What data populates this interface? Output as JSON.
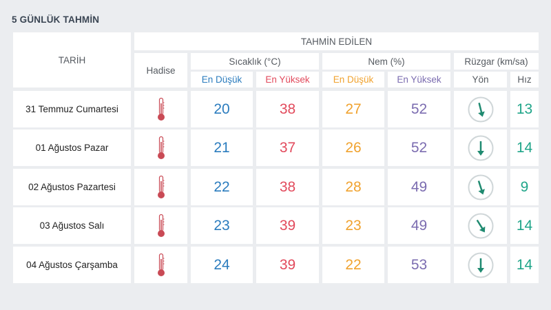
{
  "title": "5 GÜNLÜK TAHMİN",
  "headers": {
    "date": "TARİH",
    "forecast": "TAHMİN EDİLEN",
    "event": "Hadise",
    "temperature": "Sıcaklık (°C)",
    "humidity": "Nem (%)",
    "wind": "Rüzgar (km/sa)",
    "temp_min": "En Düşük",
    "temp_max": "En Yüksek",
    "hum_min": "En Düşük",
    "hum_max": "En Yüksek",
    "wind_dir": "Yön",
    "wind_speed": "Hız"
  },
  "colors": {
    "temp_min": "#2b7cbe",
    "temp_max": "#e24a5c",
    "hum_min": "#f0a22e",
    "hum_max": "#7b6cb0",
    "wind": "#1fa589"
  },
  "rows": [
    {
      "date": "31 Temmuz Cumartesi",
      "icon": "thermometer-icon",
      "temp_min": "20",
      "temp_max": "38",
      "hum_min": "27",
      "hum_max": "52",
      "wind_dir_icon": "wind-direction-arrow-icon",
      "wind_speed": "13"
    },
    {
      "date": "01 Ağustos Pazar",
      "icon": "thermometer-icon",
      "temp_min": "21",
      "temp_max": "37",
      "hum_min": "26",
      "hum_max": "52",
      "wind_dir_icon": "wind-direction-arrow-icon",
      "wind_speed": "14"
    },
    {
      "date": "02 Ağustos Pazartesi",
      "icon": "thermometer-icon",
      "temp_min": "22",
      "temp_max": "38",
      "hum_min": "28",
      "hum_max": "49",
      "wind_dir_icon": "wind-direction-arrow-icon",
      "wind_speed": "9"
    },
    {
      "date": "03 Ağustos Salı",
      "icon": "thermometer-icon",
      "temp_min": "23",
      "temp_max": "39",
      "hum_min": "23",
      "hum_max": "49",
      "wind_dir_icon": "wind-direction-arrow-icon",
      "wind_speed": "14"
    },
    {
      "date": "04 Ağustos Çarşamba",
      "icon": "thermometer-icon",
      "temp_min": "24",
      "temp_max": "39",
      "hum_min": "22",
      "hum_max": "53",
      "wind_dir_icon": "wind-direction-arrow-icon",
      "wind_speed": "14"
    }
  ]
}
